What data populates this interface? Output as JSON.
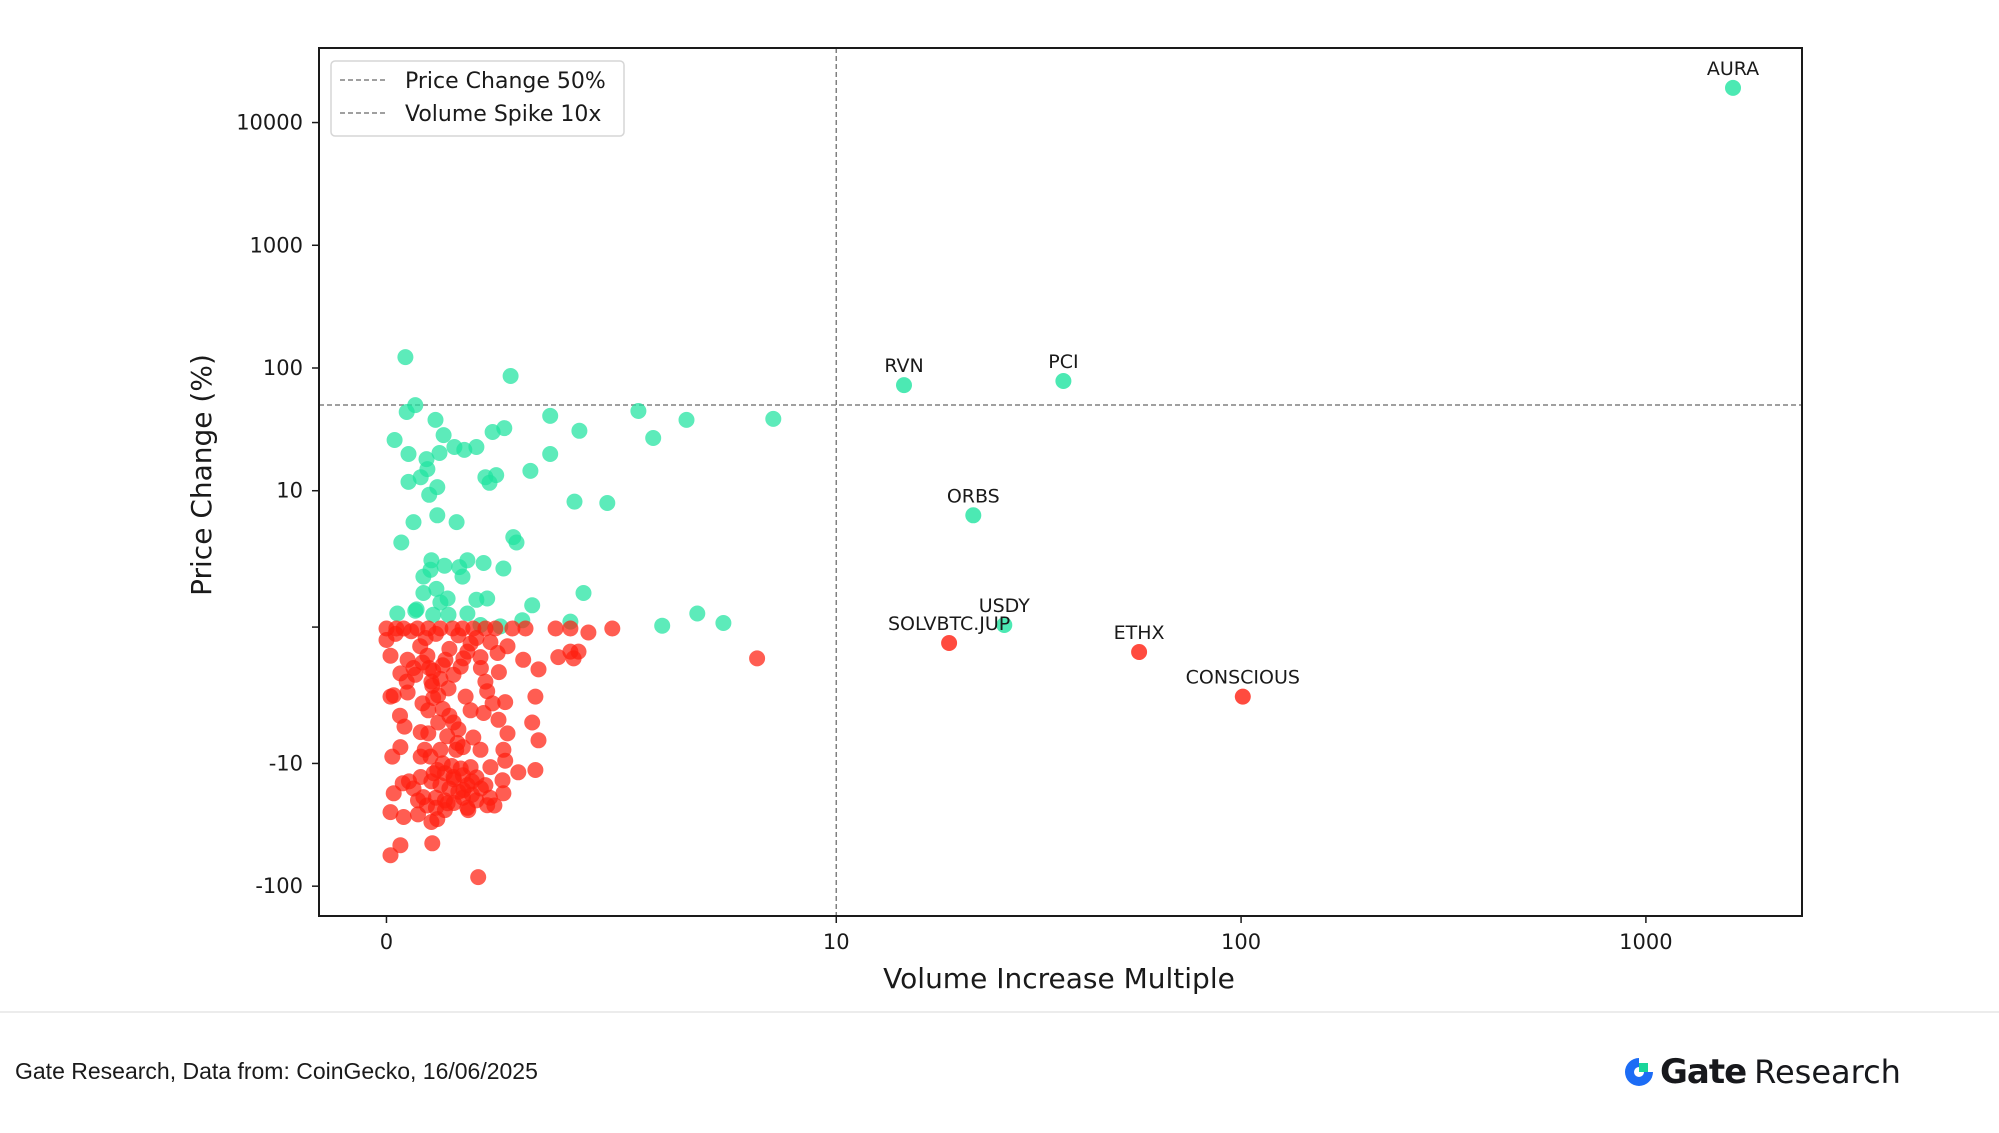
{
  "chart_data": {
    "type": "scatter",
    "xlabel": "Volume Increase Multiple",
    "ylabel": "Price Change (%)",
    "xscale": "symlog",
    "yscale": "symlog",
    "linthresh": 10,
    "xlim": [
      -1.5,
      2430
    ],
    "ylim": [
      -175,
      40500
    ],
    "xticks": [
      {
        "value": 0,
        "label": "0"
      },
      {
        "value": 10,
        "label": "10"
      },
      {
        "value": 100,
        "label": "100"
      },
      {
        "value": 1000,
        "label": "1000"
      }
    ],
    "yticks": [
      {
        "value": 10000,
        "label": "10000"
      },
      {
        "value": 1000,
        "label": "1000"
      },
      {
        "value": 100,
        "label": "100"
      },
      {
        "value": 10,
        "label": "10"
      },
      {
        "value": 0,
        "label": ""
      },
      {
        "value": -10,
        "label": "-10"
      },
      {
        "value": -100,
        "label": "-100"
      }
    ],
    "grid": false,
    "legend_position": "top-left",
    "thresholds": [
      {
        "name": "Price Change 50%",
        "axis": "y",
        "value": 50,
        "style": "dashed",
        "color": "#808080"
      },
      {
        "name": "Volume Spike 10x",
        "axis": "x",
        "value": 10,
        "style": "dashed",
        "color": "#808080"
      }
    ],
    "colors": {
      "positive": "#1fe3a0",
      "negative": "#ff1e0f"
    },
    "labeled_points": [
      {
        "label": "AURA",
        "x": 1641,
        "y": 19140,
        "series": "positive"
      },
      {
        "label": "RVN",
        "x": 14.7,
        "y": 72.6,
        "series": "positive"
      },
      {
        "label": "PCI",
        "x": 36.4,
        "y": 78.3,
        "series": "positive"
      },
      {
        "label": "ORBS",
        "x": 21.8,
        "y": 8.2,
        "series": "positive"
      },
      {
        "label": "USDY",
        "x": 26.0,
        "y": 0.15,
        "series": "positive"
      },
      {
        "label": "SOLVBTC.JUP",
        "x": 19.0,
        "y": -1.17,
        "series": "negative"
      },
      {
        "label": "ETHX",
        "x": 56.0,
        "y": -1.83,
        "series": "negative"
      },
      {
        "label": "CONSCIOUS",
        "x": 101,
        "y": -5.1,
        "series": "negative"
      }
    ],
    "series": [
      {
        "name": "positive",
        "points": [
          [
            0.42,
            122.8
          ],
          [
            2.76,
            86.1
          ],
          [
            0.64,
            49.9
          ],
          [
            0.45,
            43.8
          ],
          [
            1.09,
            37.8
          ],
          [
            3.64,
            40.7
          ],
          [
            4.29,
            30.8
          ],
          [
            5.6,
            44.6
          ],
          [
            6.67,
            37.8
          ],
          [
            8.6,
            38.5
          ],
          [
            5.93,
            26.9
          ],
          [
            0.18,
            25.9
          ],
          [
            1.27,
            28.4
          ],
          [
            2.36,
            30.1
          ],
          [
            2.62,
            32.4
          ],
          [
            0.49,
            19.9
          ],
          [
            1.18,
            20.3
          ],
          [
            1.51,
            22.7
          ],
          [
            1.73,
            21.5
          ],
          [
            2.0,
            22.7
          ],
          [
            3.64,
            19.9
          ],
          [
            0.89,
            18.1
          ],
          [
            0.91,
            15.0
          ],
          [
            0.76,
            12.9
          ],
          [
            0.49,
            11.8
          ],
          [
            1.13,
            10.7
          ],
          [
            0.95,
            9.7
          ],
          [
            2.2,
            12.9
          ],
          [
            2.44,
            13.4
          ],
          [
            2.29,
            11.6
          ],
          [
            3.2,
            14.5
          ],
          [
            4.18,
            9.2
          ],
          [
            4.91,
            9.1
          ],
          [
            0.6,
            7.7
          ],
          [
            1.13,
            8.2
          ],
          [
            1.56,
            7.7
          ],
          [
            0.33,
            6.2
          ],
          [
            2.82,
            6.6
          ],
          [
            2.89,
            6.2
          ],
          [
            1.0,
            4.9
          ],
          [
            1.29,
            4.5
          ],
          [
            1.62,
            4.4
          ],
          [
            1.8,
            4.9
          ],
          [
            2.16,
            4.7
          ],
          [
            2.6,
            4.3
          ],
          [
            0.82,
            3.7
          ],
          [
            0.98,
            4.2
          ],
          [
            1.69,
            3.7
          ],
          [
            0.82,
            2.5
          ],
          [
            1.11,
            2.8
          ],
          [
            1.36,
            2.1
          ],
          [
            1.2,
            1.8
          ],
          [
            2.0,
            2.0
          ],
          [
            2.24,
            2.1
          ],
          [
            3.24,
            1.6
          ],
          [
            4.38,
            2.5
          ],
          [
            0.67,
            1.3
          ],
          [
            0.24,
            1.0
          ],
          [
            1.8,
            1.0
          ],
          [
            6.13,
            0.1
          ],
          [
            6.91,
            1.0
          ],
          [
            7.49,
            0.3
          ],
          [
            3.02,
            0.5
          ],
          [
            4.09,
            0.4
          ],
          [
            0.64,
            1.2
          ],
          [
            1.04,
            0.9
          ],
          [
            1.38,
            0.9
          ],
          [
            2.09,
            0.15
          ],
          [
            2.53,
            0.05
          ]
        ]
      },
      {
        "name": "negative",
        "points": [
          [
            0.0,
            -0.1
          ],
          [
            0.22,
            -0.1
          ],
          [
            0.38,
            -0.1
          ],
          [
            0.69,
            -0.1
          ],
          [
            0.93,
            -0.1
          ],
          [
            1.2,
            -0.1
          ],
          [
            1.47,
            -0.1
          ],
          [
            1.69,
            -0.1
          ],
          [
            1.93,
            -0.1
          ],
          [
            2.2,
            -0.1
          ],
          [
            2.42,
            -0.1
          ],
          [
            2.8,
            -0.1
          ],
          [
            3.09,
            -0.1
          ],
          [
            3.76,
            -0.1
          ],
          [
            4.09,
            -0.1
          ],
          [
            5.02,
            -0.1
          ],
          [
            4.49,
            -0.4
          ],
          [
            0.0,
            -0.95
          ],
          [
            0.87,
            -0.8
          ],
          [
            1.87,
            -1.2
          ],
          [
            2.31,
            -1.1
          ],
          [
            2.69,
            -1.4
          ],
          [
            0.09,
            -2.1
          ],
          [
            0.47,
            -2.4
          ],
          [
            0.91,
            -2.1
          ],
          [
            1.31,
            -2.4
          ],
          [
            1.71,
            -2.3
          ],
          [
            2.09,
            -2.2
          ],
          [
            2.47,
            -1.9
          ],
          [
            3.04,
            -2.4
          ],
          [
            3.38,
            -3.1
          ],
          [
            3.82,
            -2.2
          ],
          [
            4.09,
            -1.8
          ],
          [
            4.27,
            -1.8
          ],
          [
            4.16,
            -2.3
          ],
          [
            8.24,
            -2.3
          ],
          [
            0.31,
            -3.4
          ],
          [
            0.64,
            -3.5
          ],
          [
            1.04,
            -3.2
          ],
          [
            1.49,
            -3.5
          ],
          [
            1.02,
            -4.3
          ],
          [
            1.38,
            -4.5
          ],
          [
            0.09,
            -5.1
          ],
          [
            0.16,
            -5.0
          ],
          [
            0.47,
            -4.8
          ],
          [
            0.8,
            -5.6
          ],
          [
            1.04,
            -5.2
          ],
          [
            1.76,
            -5.1
          ],
          [
            2.24,
            -4.7
          ],
          [
            2.36,
            -5.6
          ],
          [
            2.64,
            -5.5
          ],
          [
            3.31,
            -5.1
          ],
          [
            0.93,
            -6.1
          ],
          [
            1.87,
            -6.1
          ],
          [
            2.16,
            -6.3
          ],
          [
            2.49,
            -6.8
          ],
          [
            3.24,
            -7.0
          ],
          [
            0.4,
            -7.3
          ],
          [
            0.76,
            -7.7
          ],
          [
            0.93,
            -7.8
          ],
          [
            1.49,
            -7.0
          ],
          [
            1.93,
            -8.1
          ],
          [
            2.69,
            -7.8
          ],
          [
            3.38,
            -8.3
          ],
          [
            0.31,
            -8.8
          ],
          [
            0.13,
            -9.5
          ],
          [
            0.76,
            -9.5
          ],
          [
            1.2,
            -9.0
          ],
          [
            2.09,
            -9.0
          ],
          [
            2.6,
            -9.0
          ],
          [
            2.64,
            -9.8
          ],
          [
            2.93,
            -11.8
          ],
          [
            3.31,
            -11.3
          ],
          [
            0.36,
            -14.5
          ],
          [
            0.16,
            -17.5
          ],
          [
            0.76,
            -12.9
          ],
          [
            1.49,
            -12.9
          ],
          [
            1.87,
            -10.7
          ],
          [
            2.31,
            -10.7
          ],
          [
            2.58,
            -13.7
          ],
          [
            2.6,
            -17.5
          ],
          [
            2.24,
            -21.9
          ],
          [
            1.82,
            -24.0
          ],
          [
            0.09,
            -24.9
          ],
          [
            0.38,
            -27.3
          ],
          [
            1.13,
            -28.4
          ],
          [
            0.82,
            -18.8
          ],
          [
            1.36,
            -21.1
          ],
          [
            1.71,
            -16.5
          ],
          [
            1.13,
            -11.3
          ],
          [
            0.98,
            -9.5
          ],
          [
            1.58,
            -8.5
          ],
          [
            0.31,
            -46.4
          ],
          [
            0.09,
            -55.9
          ],
          [
            1.02,
            -44.7
          ],
          [
            2.04,
            -84.4
          ],
          [
            1.3,
            -12
          ],
          [
            1.5,
            -13.5
          ],
          [
            1.7,
            -12.5
          ],
          [
            1.9,
            -14
          ],
          [
            1.4,
            -16
          ],
          [
            1.6,
            -17
          ],
          [
            1.8,
            -15
          ],
          [
            2.0,
            -13
          ],
          [
            1.2,
            -15
          ],
          [
            1.0,
            -14
          ],
          [
            1.1,
            -19
          ],
          [
            1.3,
            -20
          ],
          [
            1.5,
            -21
          ],
          [
            1.7,
            -19
          ],
          [
            1.9,
            -18
          ],
          [
            2.1,
            -16
          ],
          [
            1.45,
            -10.5
          ],
          [
            1.65,
            -11
          ],
          [
            1.25,
            -10
          ],
          [
            1.05,
            -12
          ],
          [
            1.55,
            -9
          ],
          [
            1.35,
            -8
          ],
          [
            1.15,
            -7
          ],
          [
            1.25,
            -6
          ],
          [
            1.15,
            -5
          ],
          [
            1.0,
            -4
          ],
          [
            0.95,
            -3
          ],
          [
            1.4,
            -6.5
          ],
          [
            1.6,
            -7.5
          ],
          [
            1.2,
            -3.8
          ],
          [
            1.7,
            -8.8
          ],
          [
            2.0,
            -20
          ],
          [
            1.8,
            -23
          ],
          [
            1.3,
            -24
          ],
          [
            1.1,
            -23
          ],
          [
            0.9,
            -22
          ],
          [
            2.2,
            -15
          ],
          [
            2.3,
            -19
          ],
          [
            0.6,
            -16
          ],
          [
            0.7,
            -20
          ],
          [
            0.5,
            -14
          ],
          [
            0.45,
            -4.0
          ],
          [
            0.6,
            -3.0
          ],
          [
            0.8,
            -2.6
          ],
          [
            1.4,
            -1.6
          ],
          [
            1.6,
            -0.6
          ],
          [
            1.8,
            -1.8
          ],
          [
            2.1,
            -3.0
          ],
          [
            2.0,
            -0.8
          ],
          [
            0.2,
            -0.5
          ],
          [
            0.55,
            -0.3
          ],
          [
            0.75,
            -1.4
          ],
          [
            1.1,
            -0.5
          ],
          [
            1.25,
            -2.8
          ],
          [
            1.65,
            -2.9
          ],
          [
            2.5,
            -3.3
          ],
          [
            2.2,
            -4.0
          ],
          [
            0.3,
            -6.5
          ],
          [
            0.85,
            -9.0
          ],
          [
            2.4,
            -22.0
          ],
          [
            1.0,
            -30.0
          ],
          [
            0.7,
            -26.0
          ]
        ]
      }
    ]
  },
  "footer": {
    "source": "Gate Research, Data from: CoinGecko, 16/06/2025",
    "brand_name": "Gate",
    "brand_suffix": "Research",
    "brand_colors": {
      "ring": "#1c6cf5",
      "square": "#19d69a",
      "text": "#17181c"
    }
  }
}
